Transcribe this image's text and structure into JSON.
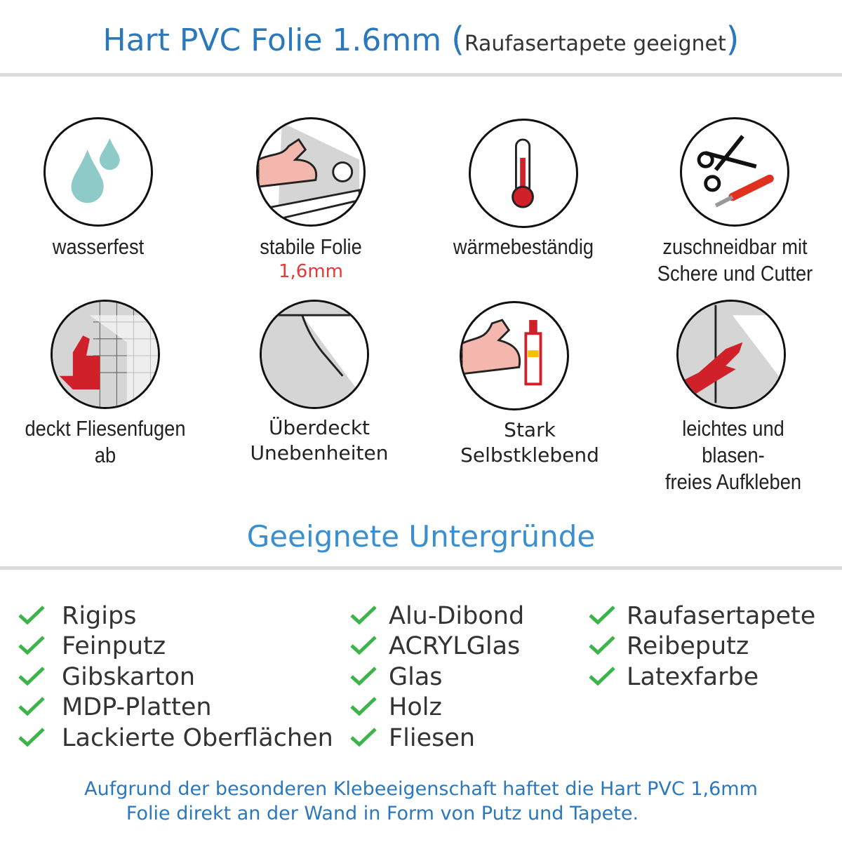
{
  "header": {
    "title": "Hart PVC Folie 1.6mm",
    "subtitle": "Raufasertapete geeignet",
    "open_paren": "(",
    "close_paren": ")"
  },
  "features": [
    {
      "icon": "water-drops-icon",
      "label": "wasserfest"
    },
    {
      "icon": "strong-arm-roll-icon",
      "label": "stabile Folie",
      "sublabel": "1,6mm"
    },
    {
      "icon": "thermometer-icon",
      "label": "wärmebeständig"
    },
    {
      "icon": "scissors-cutter-icon",
      "label": "zuschneidbar mit",
      "label2": "Schere und Cutter"
    },
    {
      "icon": "thumbs-up-tiles-icon",
      "label": "deckt Fliesenfugen ab"
    },
    {
      "icon": "peeling-foil-icon",
      "label": "Überdeckt",
      "label2": "Unebenheiten"
    },
    {
      "icon": "arm-glue-icon",
      "label": "Stark",
      "label2": "Selbstklebend"
    },
    {
      "icon": "hand-smoothing-icon",
      "label": "leichtes und blasen-",
      "label2": "freies Aufkleben"
    }
  ],
  "surfaces": {
    "heading": "Geeignete Untergründe",
    "columns": [
      [
        "Rigips",
        "Feinputz",
        "Gibskarton",
        "MDP-Platten",
        "Lackierte Oberflächen"
      ],
      [
        "Alu-Dibond",
        "ACRYLGlas",
        "Glas",
        "Holz",
        "Fliesen"
      ],
      [
        "Raufasertapete",
        "Reibeputz",
        "Latexfarbe"
      ]
    ],
    "check_color": "#3bb54a"
  },
  "footer": {
    "line1": "Aufgrund der besonderen Klebeeigenschaft haftet die Hart PVC 1,6mm",
    "line2": "Folie direkt an der Wand in Form von Putz und Tapete."
  },
  "colors": {
    "accent": "#2b78bd",
    "heading": "#3a8fd0",
    "highlight": "#e03a3a"
  }
}
